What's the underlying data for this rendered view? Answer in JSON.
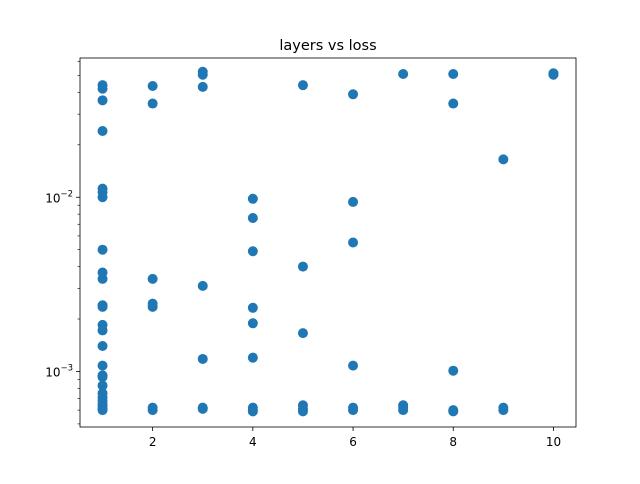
{
  "chart_data": {
    "type": "scatter",
    "title": "layers vs loss",
    "xlabel": "",
    "ylabel": "",
    "xlim": [
      0.55,
      10.45
    ],
    "ylim": [
      0.00048,
      0.063
    ],
    "yscale": "log",
    "x_ticks": [
      2,
      4,
      6,
      8,
      10
    ],
    "x_tick_labels": [
      "2",
      "4",
      "6",
      "8",
      "10"
    ],
    "y_major_ticks": [
      0.001,
      0.01
    ],
    "y_tick_base": "10",
    "y_tick_exponents": [
      "−3",
      "−2"
    ],
    "y_minor_ticks": [
      0.0005,
      0.0006,
      0.0007,
      0.0008,
      0.0009,
      0.002,
      0.003,
      0.004,
      0.005,
      0.006,
      0.007,
      0.008,
      0.009,
      0.02,
      0.03,
      0.04,
      0.05,
      0.06
    ],
    "grid": false,
    "marker_color": "#1f77b4",
    "series": [
      {
        "points": [
          [
            1,
            0.044
          ],
          [
            1,
            0.042
          ],
          [
            1,
            0.036
          ],
          [
            1,
            0.024
          ],
          [
            1,
            0.0112
          ],
          [
            1,
            0.0107
          ],
          [
            1,
            0.01
          ],
          [
            1,
            0.005
          ],
          [
            1,
            0.0037
          ],
          [
            1,
            0.0034
          ],
          [
            1,
            0.0024
          ],
          [
            1,
            0.00235
          ],
          [
            1,
            0.00185
          ],
          [
            1,
            0.00172
          ],
          [
            1,
            0.0014
          ],
          [
            1,
            0.00108
          ],
          [
            1,
            0.00095
          ],
          [
            1,
            0.00093
          ],
          [
            1,
            0.00083
          ],
          [
            1,
            0.00075
          ],
          [
            1,
            0.00071
          ],
          [
            1,
            0.00068
          ],
          [
            1,
            0.00065
          ],
          [
            1,
            0.00063
          ],
          [
            1,
            0.00061
          ],
          [
            1,
            0.0006
          ],
          [
            2,
            0.0435
          ],
          [
            2,
            0.0345
          ],
          [
            2,
            0.0034
          ],
          [
            2,
            0.00245
          ],
          [
            2,
            0.00235
          ],
          [
            2,
            0.00062
          ],
          [
            2,
            0.0006
          ],
          [
            3,
            0.0525
          ],
          [
            3,
            0.0505
          ],
          [
            3,
            0.043
          ],
          [
            3,
            0.0031
          ],
          [
            3,
            0.00118
          ],
          [
            3,
            0.00062
          ],
          [
            3,
            0.00061
          ],
          [
            4,
            0.0098
          ],
          [
            4,
            0.0076
          ],
          [
            4,
            0.0049
          ],
          [
            4,
            0.00232
          ],
          [
            4,
            0.00189
          ],
          [
            4,
            0.0012
          ],
          [
            4,
            0.00062
          ],
          [
            4,
            0.0006
          ],
          [
            4,
            0.00059
          ],
          [
            5,
            0.044
          ],
          [
            5,
            0.004
          ],
          [
            5,
            0.00166
          ],
          [
            5,
            0.00064
          ],
          [
            5,
            0.00061
          ],
          [
            5,
            0.00059
          ],
          [
            6,
            0.039
          ],
          [
            6,
            0.0094
          ],
          [
            6,
            0.0055
          ],
          [
            6,
            0.00108
          ],
          [
            6,
            0.00062
          ],
          [
            6,
            0.0006
          ],
          [
            7,
            0.051
          ],
          [
            7,
            0.00064
          ],
          [
            7,
            0.00062
          ],
          [
            7,
            0.0006
          ],
          [
            8,
            0.051
          ],
          [
            8,
            0.0345
          ],
          [
            8,
            0.00101
          ],
          [
            8,
            0.0006
          ],
          [
            8,
            0.00059
          ],
          [
            9,
            0.0165
          ],
          [
            9,
            0.00062
          ],
          [
            9,
            0.0006
          ],
          [
            10,
            0.051
          ],
          [
            10,
            0.0515
          ],
          [
            10,
            0.0505
          ]
        ]
      }
    ]
  }
}
